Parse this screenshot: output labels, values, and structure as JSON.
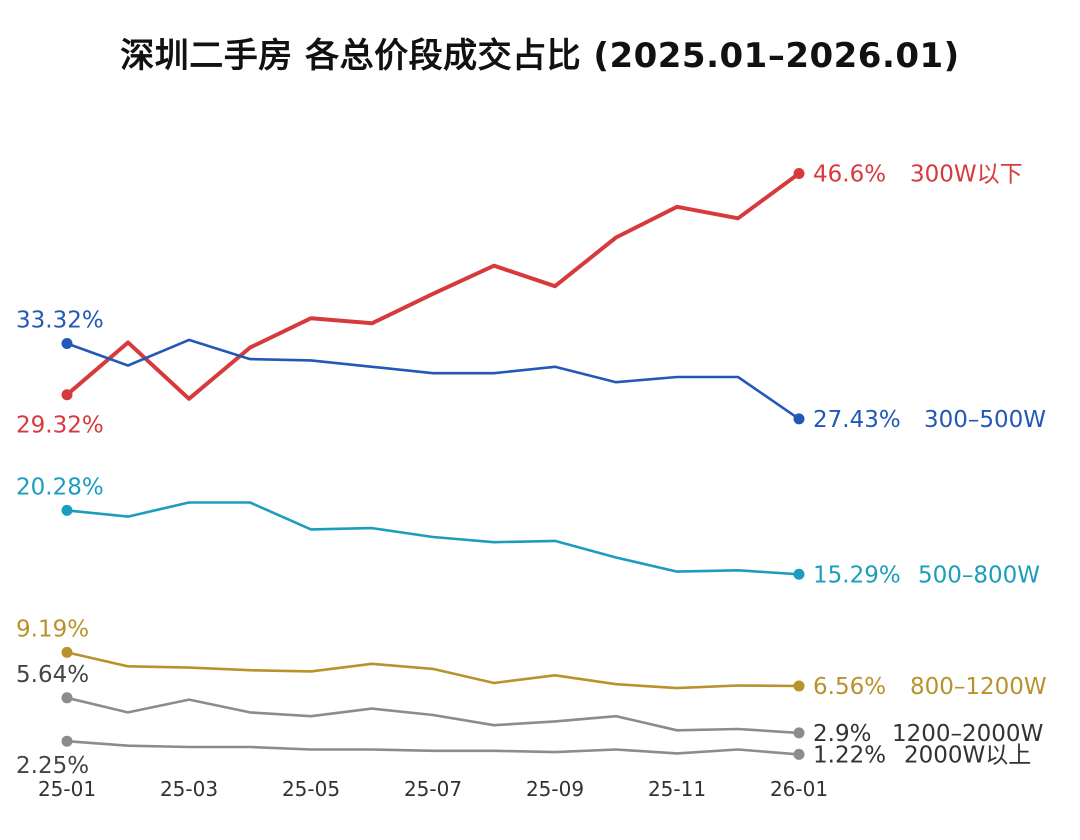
{
  "chart_data": {
    "type": "line",
    "title": "深圳二手房 各总价段成交占比 (2025.01–2026.01)",
    "categories": [
      "25-01",
      "25-02",
      "25-03",
      "25-04",
      "25-05",
      "25-06",
      "25-07",
      "25-08",
      "25-09",
      "25-10",
      "25-11",
      "25-12",
      "26-01"
    ],
    "tick_labels": [
      "25-01",
      "25-03",
      "25-05",
      "25-07",
      "25-09",
      "25-11",
      "26-01"
    ],
    "xlabel": "",
    "ylabel": "",
    "ylim": [
      0,
      50
    ],
    "grid": false,
    "series": [
      {
        "name": "300W以下",
        "color": "#d63a3d",
        "values": [
          29.32,
          33.4,
          29.0,
          33.0,
          35.3,
          34.9,
          37.2,
          39.4,
          37.8,
          41.6,
          44.0,
          43.1,
          46.6
        ],
        "start_label": "29.32%",
        "end_label": "46.6%"
      },
      {
        "name": "300–500W",
        "color": "#2358b8",
        "values": [
          33.32,
          31.6,
          33.6,
          32.1,
          32.0,
          31.5,
          31.0,
          31.0,
          31.5,
          30.3,
          30.7,
          30.7,
          27.43
        ],
        "start_label": "33.32%",
        "end_label": "27.43%"
      },
      {
        "name": "500–800W",
        "color": "#1d9dbd",
        "values": [
          20.28,
          19.8,
          20.9,
          20.9,
          18.8,
          18.9,
          18.2,
          17.8,
          17.9,
          16.6,
          15.5,
          15.6,
          15.29
        ],
        "start_label": "20.28%",
        "end_label": "15.29%"
      },
      {
        "name": "800–1200W",
        "color": "#b8922b",
        "values": [
          9.19,
          8.1,
          8.0,
          7.8,
          7.7,
          8.3,
          7.9,
          6.8,
          7.4,
          6.7,
          6.4,
          6.6,
          6.56
        ],
        "start_label": "9.19%",
        "end_label": "6.56%"
      },
      {
        "name": "1200–2000W",
        "color": "#8c8c8c",
        "values": [
          5.64,
          4.5,
          5.5,
          4.5,
          4.2,
          4.8,
          4.3,
          3.5,
          3.8,
          4.2,
          3.1,
          3.2,
          2.9
        ],
        "start_label": "5.64%",
        "end_label": "2.9%"
      },
      {
        "name": "2000W以上",
        "color": "#8c8c8c",
        "values": [
          2.25,
          1.9,
          1.8,
          1.8,
          1.6,
          1.6,
          1.5,
          1.5,
          1.4,
          1.6,
          1.3,
          1.6,
          1.22
        ],
        "start_label": "2.25%",
        "end_label": "1.22%"
      }
    ]
  }
}
